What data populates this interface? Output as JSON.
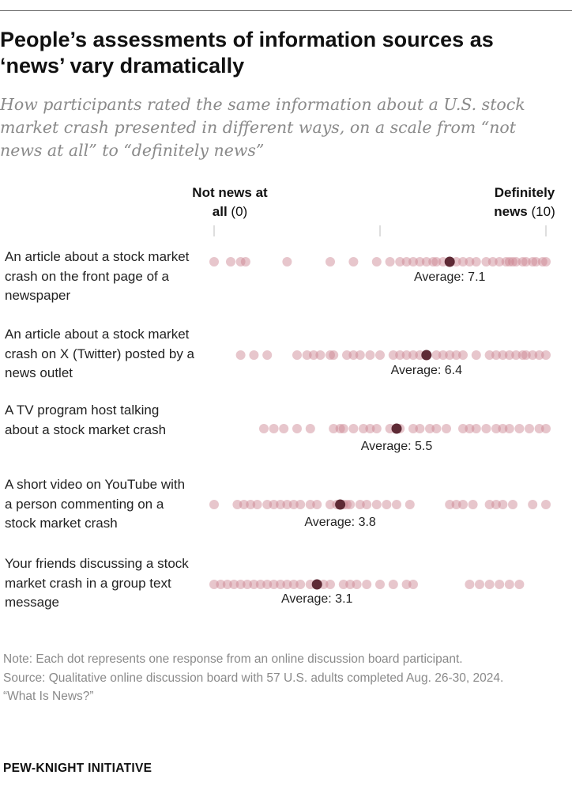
{
  "header": {
    "title": "People’s assessments of information sources as ‘news’ vary dramatically",
    "subtitle": "How participants rated the same information about a U.S. stock market crash presented in different ways, on a scale from “not news at all” to “definitely news”"
  },
  "scale": {
    "left_bold": "Not news at all",
    "left_num": "(0)",
    "right_bold": "Definitely news",
    "right_num": "(10)"
  },
  "colors": {
    "dot": "#c9818f",
    "average_dot": "#5e2a35",
    "tick": "#bdbdbd"
  },
  "chart_data": {
    "type": "scatter",
    "title": "People’s assessments of information sources as ‘news’ vary dramatically",
    "x_range": [
      0,
      10
    ],
    "rows": [
      {
        "label": "An article about a stock market crash on the front page of a newspaper",
        "average": 7.1,
        "average_label": "Average: 7.1",
        "values": [
          0.0,
          0.5,
          0.8,
          0.95,
          2.2,
          3.5,
          4.2,
          4.9,
          5.3,
          5.6,
          5.8,
          6.0,
          6.2,
          6.4,
          6.6,
          6.7,
          6.9,
          7.3,
          7.5,
          7.7,
          7.9,
          8.2,
          8.4,
          8.6,
          8.8,
          8.9,
          9.0,
          9.1,
          9.3,
          9.4,
          9.6,
          9.7,
          9.9,
          10.0
        ]
      },
      {
        "label": "An article about a stock market crash on X (Twitter) posted by a news outlet",
        "average": 6.4,
        "average_label": "Average: 6.4",
        "values": [
          0.8,
          1.2,
          1.6,
          2.5,
          2.8,
          3.0,
          3.2,
          3.5,
          3.6,
          4.0,
          4.2,
          4.4,
          4.7,
          5.0,
          5.4,
          5.6,
          5.8,
          6.0,
          6.2,
          6.7,
          6.9,
          7.1,
          7.3,
          7.5,
          7.9,
          8.3,
          8.5,
          8.7,
          8.9,
          9.1,
          9.3,
          9.4,
          9.6,
          9.8,
          10.0
        ]
      },
      {
        "label": "A TV program host talking about a stock market crash",
        "average": 5.5,
        "average_label": "Average: 5.5",
        "values": [
          1.5,
          1.8,
          2.1,
          2.5,
          2.9,
          3.6,
          3.8,
          3.9,
          4.2,
          7.9,
          7.5,
          7.7,
          8.2,
          8.5,
          8.7,
          4.5,
          4.7,
          4.9,
          5.3,
          5.6,
          6.0,
          6.2,
          6.5,
          6.7,
          7.0,
          8.9,
          9.2,
          9.5,
          9.8,
          10.0
        ]
      },
      {
        "label": "A short video on YouTube with a person commenting on a stock market crash",
        "average": 3.8,
        "average_label": "Average: 3.8",
        "values": [
          0.0,
          0.7,
          0.9,
          1.1,
          1.3,
          1.6,
          1.8,
          2.0,
          2.2,
          2.4,
          2.6,
          2.9,
          3.1,
          3.5,
          3.7,
          3.9,
          4.0,
          4.1,
          4.4,
          4.6,
          4.9,
          5.2,
          5.5,
          5.9,
          7.1,
          7.3,
          7.5,
          7.8,
          8.3,
          8.5,
          8.7,
          9.0,
          9.6,
          10.0
        ]
      },
      {
        "label": "Your friends discussing a stock market crash in a group text message",
        "average": 3.1,
        "average_label": "Average: 3.1",
        "values": [
          0.0,
          0.2,
          0.4,
          0.6,
          0.8,
          1.0,
          1.2,
          1.4,
          1.6,
          1.8,
          2.0,
          2.2,
          2.4,
          2.6,
          2.9,
          3.3,
          3.5,
          3.9,
          4.1,
          4.3,
          4.6,
          5.0,
          5.4,
          5.8,
          6.0,
          7.7,
          8.0,
          8.3,
          8.6,
          8.9,
          9.2
        ]
      }
    ]
  },
  "footer": {
    "note": "Note: Each dot represents one response from an online discussion board participant.",
    "source": "Source: Qualitative online discussion board with 57 U.S. adults completed Aug. 26-30, 2024.",
    "report": "“What Is News?”",
    "brand": "PEW-KNIGHT INITIATIVE"
  }
}
